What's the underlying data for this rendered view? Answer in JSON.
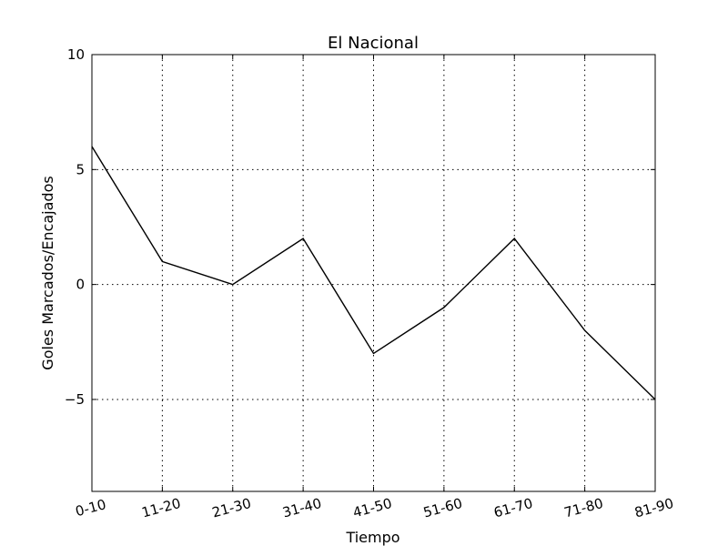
{
  "chart_data": {
    "type": "line",
    "title": "El Nacional",
    "xlabel": "Tiempo",
    "ylabel": "Goles Marcados/Encajados",
    "categories": [
      "0-10",
      "11-20",
      "21-30",
      "31-40",
      "41-50",
      "51-60",
      "61-70",
      "71-80",
      "81-90"
    ],
    "series": [
      {
        "values": [
          6,
          1,
          0,
          2,
          -3,
          -1,
          2,
          -2,
          -5
        ],
        "color": "#000000"
      }
    ],
    "ylim": [
      -9,
      10
    ],
    "yticks": [
      10,
      5,
      0,
      -5
    ],
    "ytick_labels": [
      "10",
      "5",
      "0",
      "−5"
    ],
    "grid": true,
    "legend": "none"
  }
}
